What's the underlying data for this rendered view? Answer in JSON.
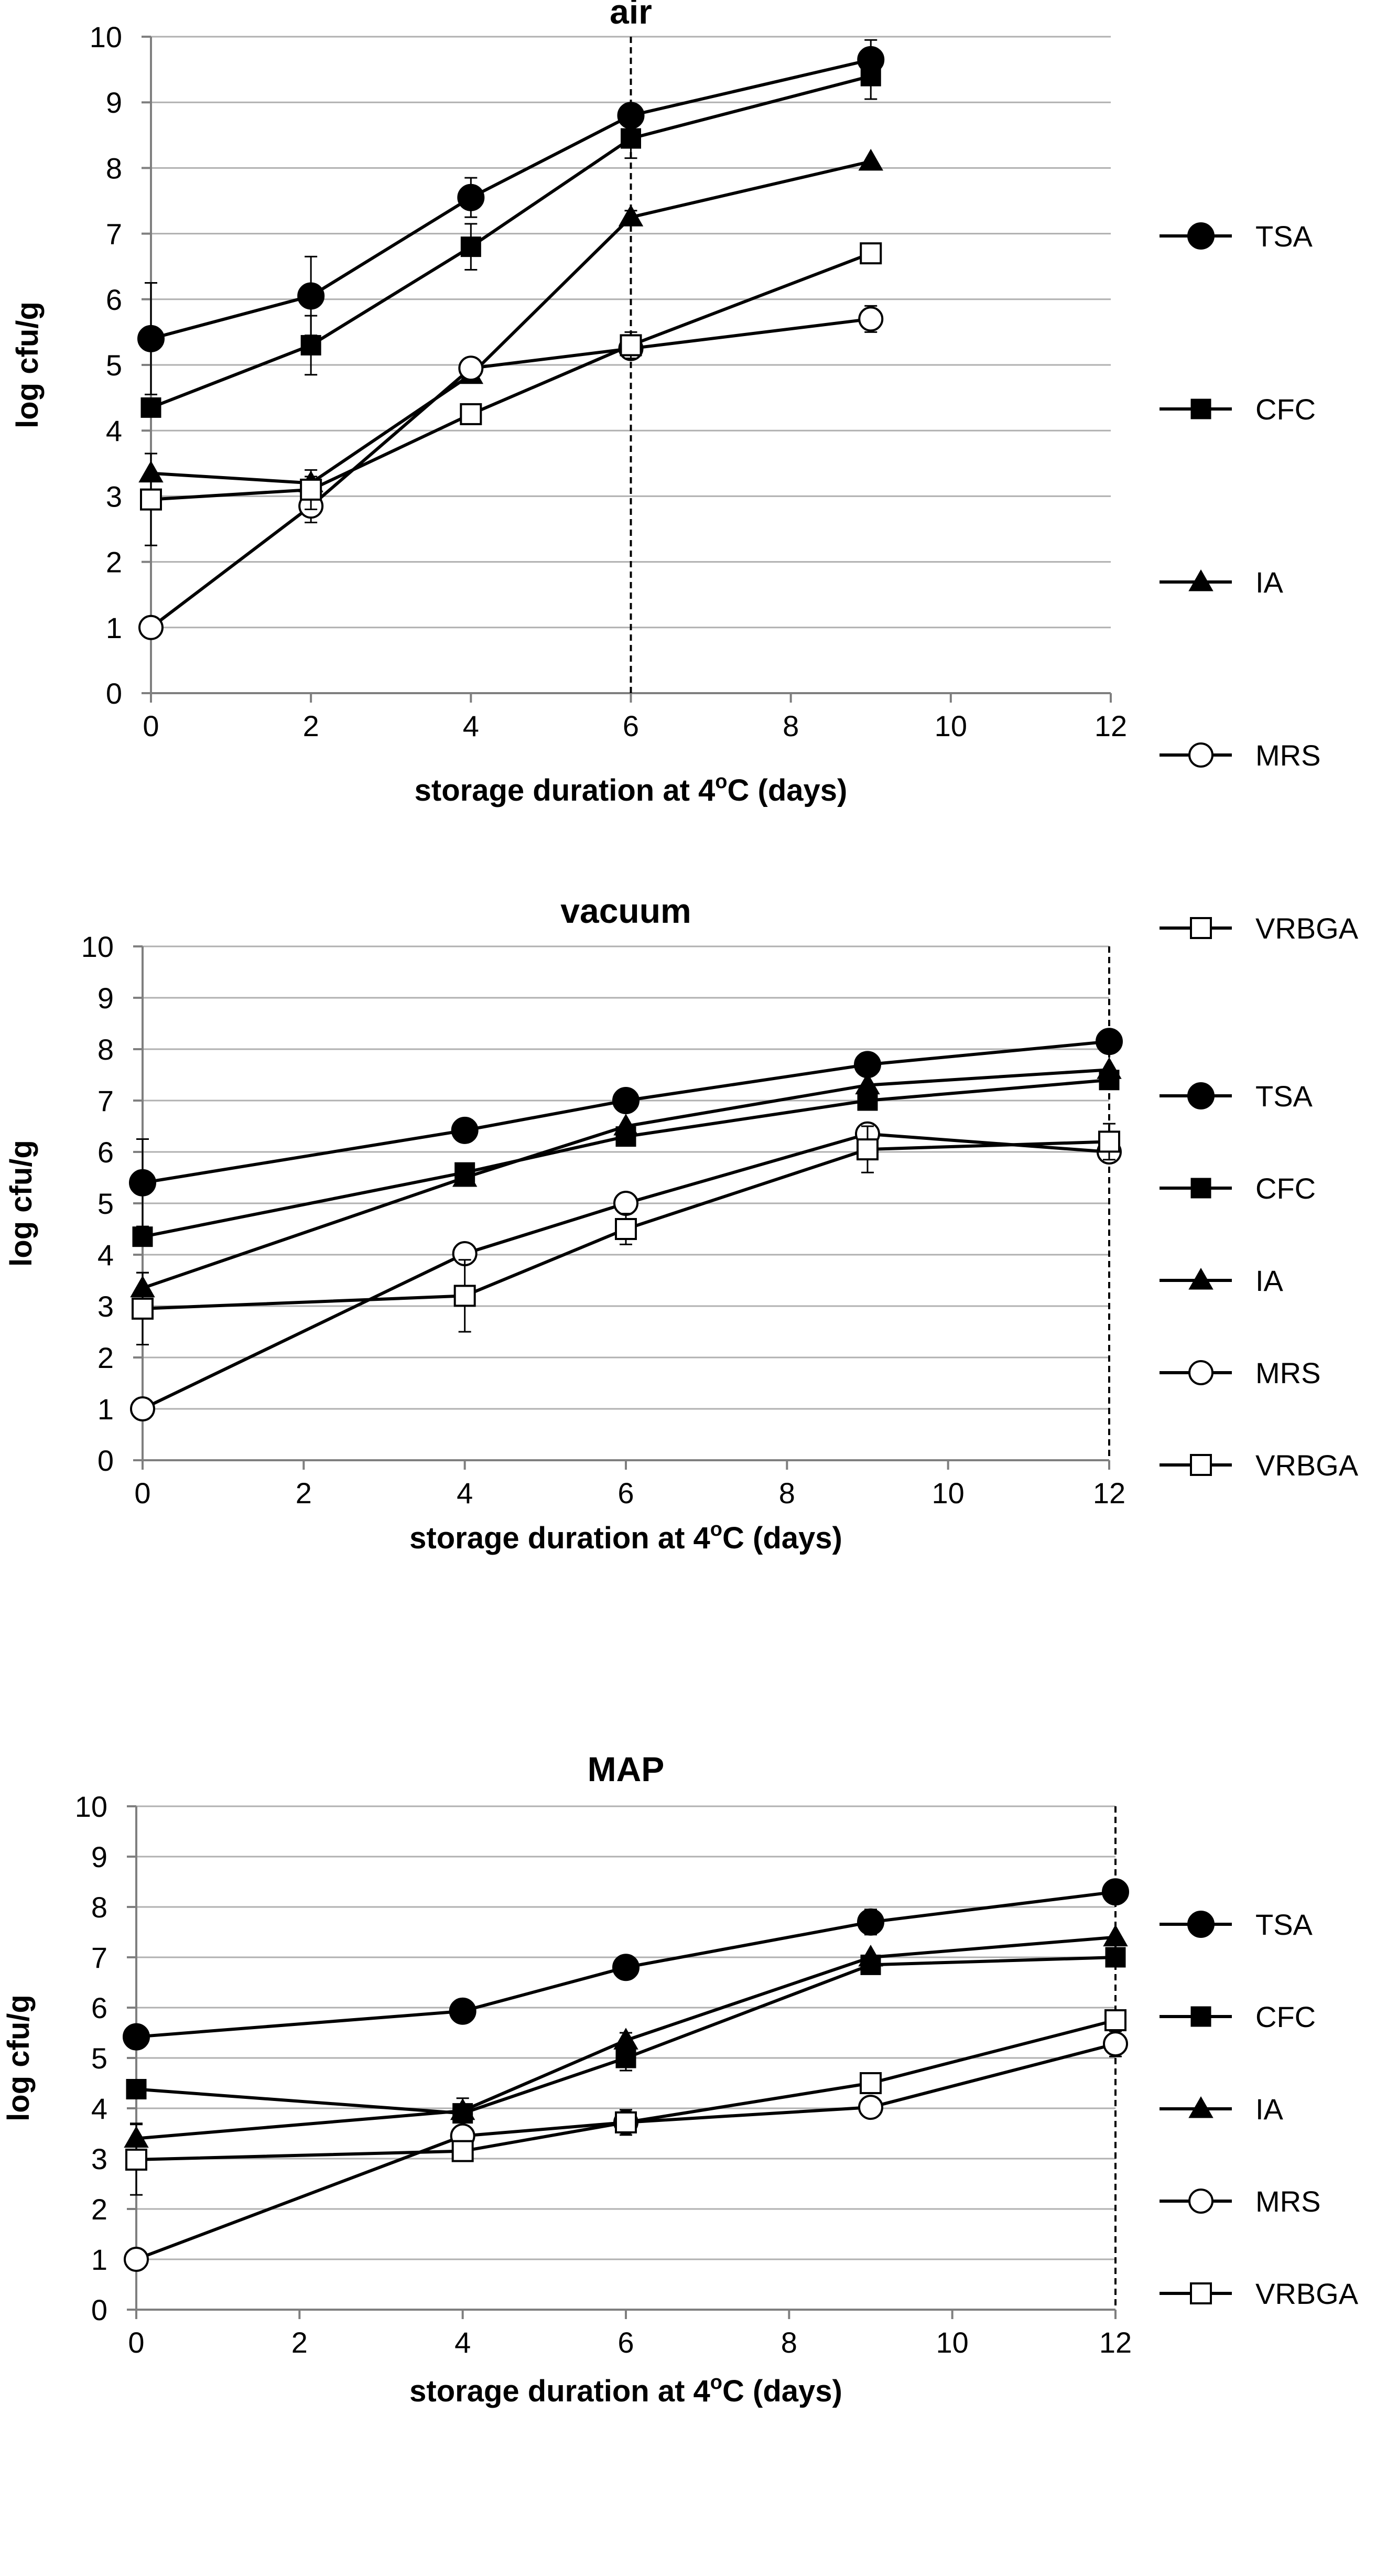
{
  "colors": {
    "background": "#ffffff",
    "grid": "#b0b0b0",
    "axis": "#7f7f7f",
    "series": "#000000"
  },
  "chart_data": [
    {
      "type": "line",
      "title": "air",
      "xlabel": "storage duration at 4",
      "xlabel_superscript": "o",
      "xlabel_tail": "C (days)",
      "ylabel": "log cfu/g",
      "xlim": [
        0,
        12
      ],
      "ylim": [
        0,
        10
      ],
      "xticks": [
        "0",
        "2",
        "4",
        "6",
        "8",
        "10",
        "12"
      ],
      "yticks": [
        "0",
        "1",
        "2",
        "3",
        "4",
        "5",
        "6",
        "7",
        "8",
        "9",
        "10"
      ],
      "grid": true,
      "dashed_reference_x": 6,
      "legend": "right",
      "series": [
        {
          "name": "TSA",
          "marker": "circle-filled",
          "x": [
            0,
            2,
            4,
            6,
            9
          ],
          "y": [
            5.4,
            6.05,
            7.55,
            8.8,
            9.65
          ],
          "err": [
            0.85,
            0.6,
            0.3,
            0.15,
            0.3
          ]
        },
        {
          "name": "CFC",
          "marker": "square-filled",
          "x": [
            0,
            2,
            4,
            6,
            9
          ],
          "y": [
            4.35,
            5.3,
            6.8,
            8.45,
            9.4
          ],
          "err": [
            0.1,
            0.45,
            0.35,
            0.3,
            0.35
          ]
        },
        {
          "name": "IA",
          "marker": "triangle-filled",
          "x": [
            0,
            2,
            4,
            6,
            9
          ],
          "y": [
            3.35,
            3.2,
            4.85,
            7.25,
            8.1
          ],
          "err": [
            0.3,
            0.1,
            0.1,
            0.1,
            0.05
          ]
        },
        {
          "name": "MRS",
          "marker": "circle-open",
          "x": [
            0,
            2,
            4,
            6,
            9
          ],
          "y": [
            1.0,
            2.85,
            4.95,
            5.25,
            5.7
          ],
          "err": [
            0.05,
            0.25,
            0.1,
            0.15,
            0.2
          ]
        },
        {
          "name": "VRBGA",
          "marker": "square-open",
          "x": [
            0,
            2,
            4,
            6,
            9
          ],
          "y": [
            2.95,
            3.1,
            4.25,
            5.3,
            6.7
          ],
          "err": [
            0.7,
            0.3,
            0.15,
            0.2,
            0.1
          ]
        }
      ]
    },
    {
      "type": "line",
      "title": "vacuum",
      "xlabel": "storage duration at 4",
      "xlabel_superscript": "o",
      "xlabel_tail": "C (days)",
      "ylabel": "log cfu/g",
      "xlim": [
        0,
        12
      ],
      "ylim": [
        0,
        10
      ],
      "xticks": [
        "0",
        "2",
        "4",
        "6",
        "8",
        "10",
        "12"
      ],
      "yticks": [
        "0",
        "1",
        "2",
        "3",
        "4",
        "5",
        "6",
        "7",
        "8",
        "9",
        "10"
      ],
      "grid": true,
      "dashed_reference_x": 12,
      "legend": "right",
      "series": [
        {
          "name": "TSA",
          "marker": "circle-filled",
          "x": [
            0,
            4,
            6,
            9,
            12
          ],
          "y": [
            5.4,
            6.42,
            7.0,
            7.7,
            8.15
          ],
          "err": [
            0.85,
            0.05,
            0.05,
            0.05,
            0.05
          ]
        },
        {
          "name": "CFC",
          "marker": "square-filled",
          "x": [
            0,
            4,
            6,
            9,
            12
          ],
          "y": [
            4.35,
            5.6,
            6.3,
            7.0,
            7.4
          ],
          "err": [
            0.1,
            0.05,
            0.05,
            0.05,
            0.05
          ]
        },
        {
          "name": "IA",
          "marker": "triangle-filled",
          "x": [
            0,
            4,
            6,
            9,
            12
          ],
          "y": [
            3.35,
            5.5,
            6.5,
            7.3,
            7.6
          ],
          "err": [
            0.3,
            0.05,
            0.05,
            0.05,
            0.05
          ]
        },
        {
          "name": "MRS",
          "marker": "circle-open",
          "x": [
            0,
            4,
            6,
            9,
            12
          ],
          "y": [
            1.0,
            4.02,
            5.0,
            6.35,
            6.0
          ],
          "err": [
            0.05,
            0.05,
            0.2,
            0.2,
            0.1
          ]
        },
        {
          "name": "VRBGA",
          "marker": "square-open",
          "x": [
            0,
            4,
            6,
            9,
            12
          ],
          "y": [
            2.95,
            3.2,
            4.5,
            6.05,
            6.2
          ],
          "err": [
            0.7,
            0.7,
            0.3,
            0.45,
            0.35
          ]
        }
      ]
    },
    {
      "type": "line",
      "title": "MAP",
      "xlabel": "storage duration at 4",
      "xlabel_superscript": "o",
      "xlabel_tail": "C (days)",
      "ylabel": "log cfu/g",
      "xlim": [
        0,
        12
      ],
      "ylim": [
        0,
        10
      ],
      "xticks": [
        "0",
        "2",
        "4",
        "6",
        "8",
        "10",
        "12"
      ],
      "yticks": [
        "0",
        "1",
        "2",
        "3",
        "4",
        "5",
        "6",
        "7",
        "8",
        "9",
        "10"
      ],
      "grid": true,
      "dashed_reference_x": 12,
      "legend": "right",
      "series": [
        {
          "name": "TSA",
          "marker": "circle-filled",
          "x": [
            0,
            4,
            6,
            9,
            12
          ],
          "y": [
            5.42,
            5.93,
            6.8,
            7.7,
            8.3
          ],
          "err": [
            0.2,
            0.05,
            0.15,
            0.25,
            0.05
          ]
        },
        {
          "name": "CFC",
          "marker": "square-filled",
          "x": [
            0,
            4,
            6,
            9,
            12
          ],
          "y": [
            4.38,
            3.9,
            5.0,
            6.85,
            7.0
          ],
          "err": [
            0.1,
            0.3,
            0.25,
            0.05,
            0.05
          ]
        },
        {
          "name": "IA",
          "marker": "triangle-filled",
          "x": [
            0,
            4,
            6,
            9,
            12
          ],
          "y": [
            3.4,
            3.95,
            5.35,
            7.0,
            7.4
          ],
          "err": [
            0.3,
            0.1,
            0.15,
            0.05,
            0.05
          ]
        },
        {
          "name": "MRS",
          "marker": "circle-open",
          "x": [
            0,
            4,
            6,
            9,
            12
          ],
          "y": [
            1.0,
            3.45,
            3.72,
            4.02,
            5.28
          ],
          "err": [
            0.05,
            0.1,
            0.1,
            0.05,
            0.25
          ]
        },
        {
          "name": "VRBGA",
          "marker": "square-open",
          "x": [
            0,
            4,
            6,
            9,
            12
          ],
          "y": [
            2.98,
            3.15,
            3.72,
            4.5,
            5.75
          ],
          "err": [
            0.7,
            0.1,
            0.25,
            0.05,
            0.1
          ]
        }
      ]
    }
  ]
}
